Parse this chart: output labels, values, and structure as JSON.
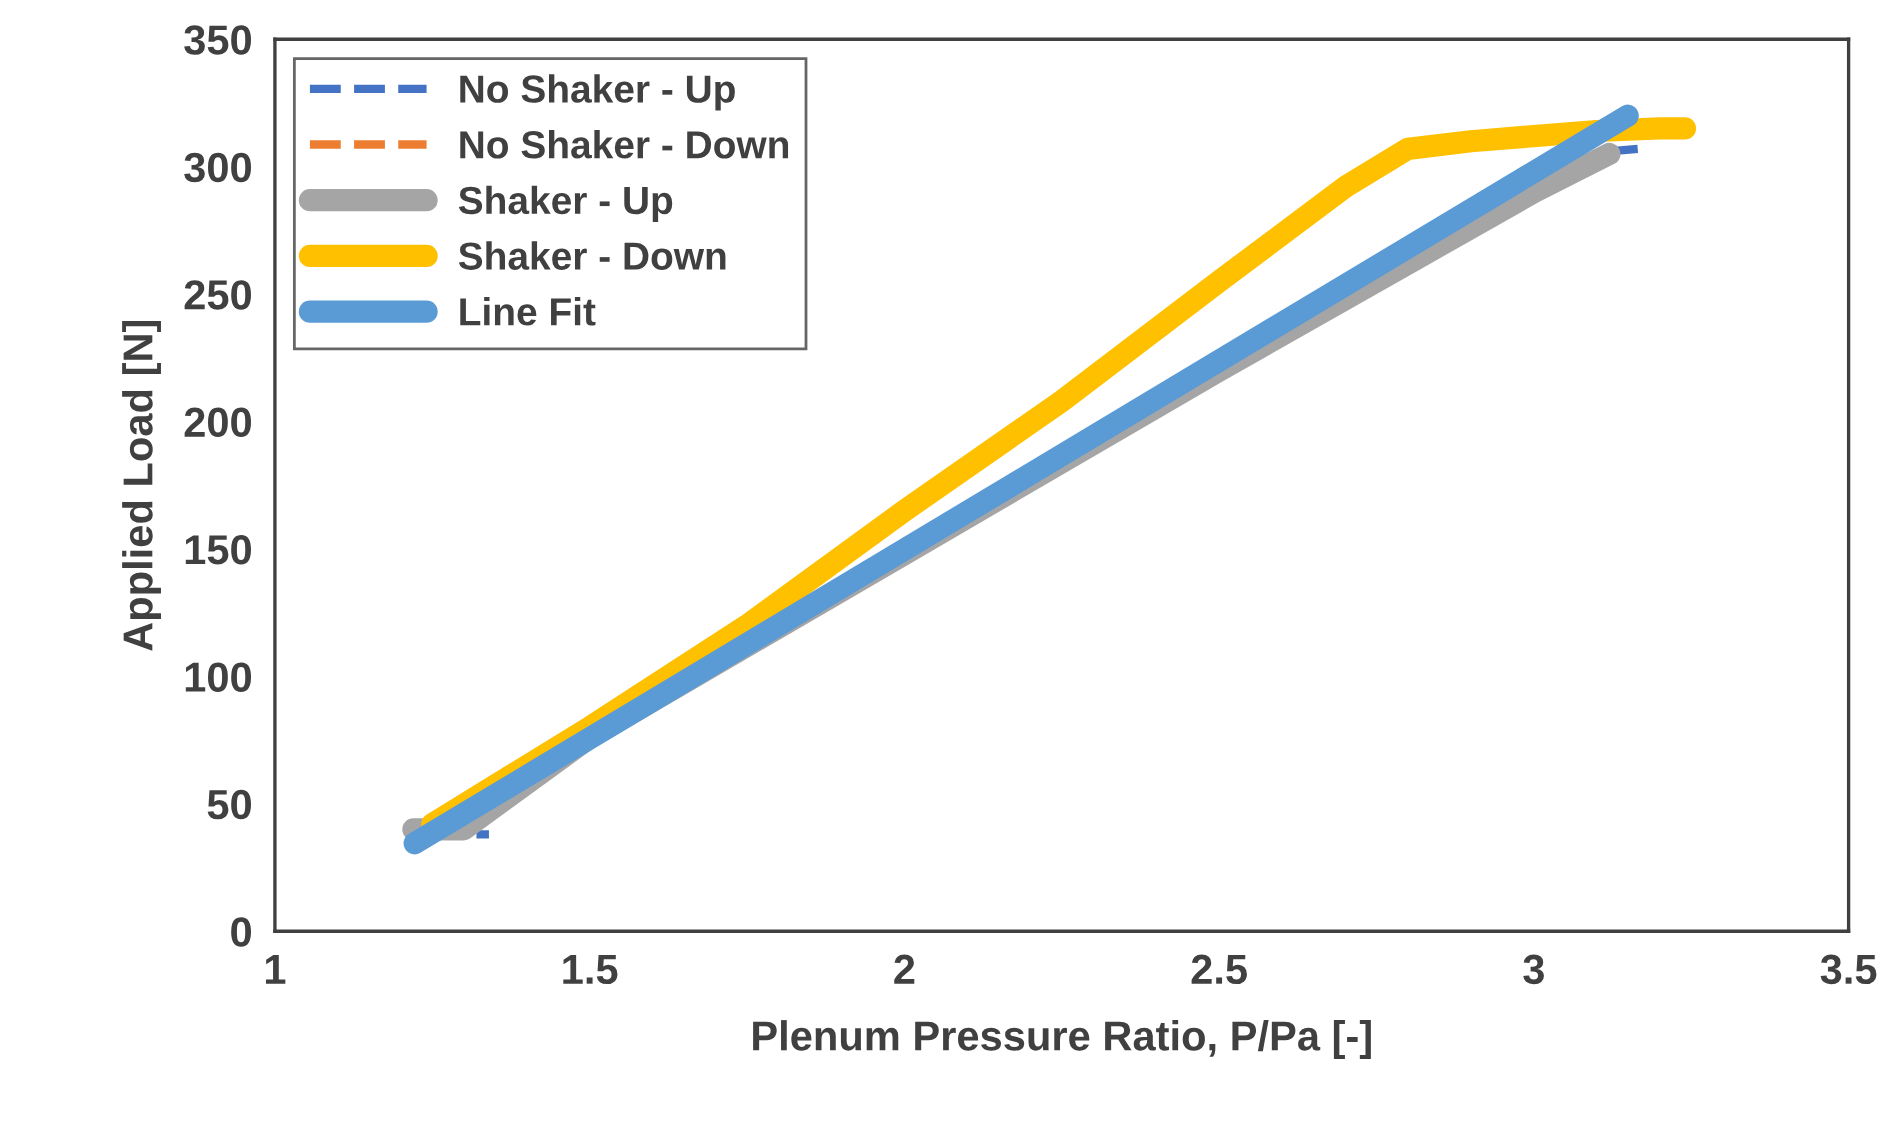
{
  "chart_data": {
    "type": "line",
    "xlabel": "Plenum Pressure Ratio, P/Pa [-]",
    "ylabel": "Applied Load [N]",
    "xlim": [
      1,
      3.5
    ],
    "xticks": [
      1,
      1.5,
      2,
      2.5,
      3,
      3.5
    ],
    "ylim": [
      0,
      350
    ],
    "yticks": [
      0,
      50,
      100,
      150,
      200,
      250,
      300,
      350
    ],
    "grid": false,
    "legend": "top left",
    "series": [
      {
        "name": "No Shaker - Up",
        "color": "#4472c4",
        "line_style": "dashed",
        "x": [
          1.25,
          1.34,
          2.0,
          3.12,
          3.165
        ],
        "values": [
          38,
          38,
          null,
          306,
          307
        ]
      },
      {
        "name": "No Shaker - Down",
        "color": "#ed7d31",
        "line_style": "dashed"
      },
      {
        "name": "Shaker - Up",
        "color": "#a5a5a5",
        "line_style": "solid",
        "x": [
          1.22,
          1.3,
          1.5,
          2.0,
          2.5,
          2.8,
          3.0,
          3.12
        ],
        "values": [
          40,
          40,
          76,
          148,
          220,
          262,
          290,
          305
        ]
      },
      {
        "name": "Shaker - Down",
        "color": "#ffc000",
        "line_style": "solid",
        "x": [
          1.25,
          1.5,
          1.75,
          2.0,
          2.25,
          2.5,
          2.7,
          2.8,
          2.9,
          3.0,
          3.1,
          3.2,
          3.24
        ],
        "values": [
          42,
          80,
          120,
          165,
          208,
          255,
          292,
          307,
          310,
          312,
          314,
          315,
          315
        ]
      },
      {
        "name": "Line Fit",
        "color": "#5b9bd5",
        "line_style": "solid",
        "x": [
          1.222,
          3.149
        ],
        "values": [
          34.5,
          320
        ]
      }
    ]
  }
}
